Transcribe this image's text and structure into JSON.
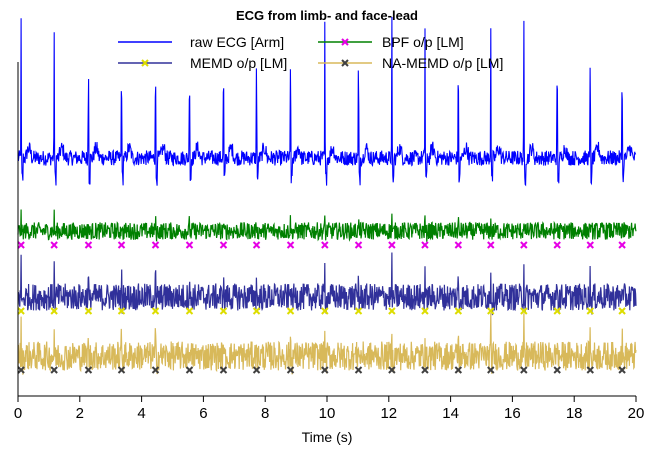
{
  "chart_data": {
    "type": "line",
    "title": "ECG from limb- and face-lead",
    "xlabel": "Time (s)",
    "ylabel": "",
    "xlim": [
      0,
      20
    ],
    "xticks": [
      0,
      2,
      4,
      6,
      8,
      10,
      12,
      14,
      16,
      18,
      20
    ],
    "xtick_labels": [
      "0",
      "2",
      "4",
      "6",
      "8",
      "10",
      "12",
      "14",
      "16",
      "18",
      "20"
    ],
    "yticks_visible": false,
    "grid": false,
    "legend_position": "top",
    "beat_times_s": [
      0.1,
      1.17,
      2.28,
      3.35,
      4.45,
      5.55,
      6.65,
      7.72,
      8.82,
      9.93,
      11.02,
      12.1,
      13.17,
      14.25,
      15.3,
      16.37,
      17.45,
      18.52,
      19.55
    ],
    "series": [
      {
        "name": "raw ECG [Arm]",
        "color": "#0000ff",
        "marker": "none",
        "baseline": 2.8,
        "r_peak": 2.1,
        "noise_amplitude": 0.12,
        "vertical_offset": 3
      },
      {
        "name": "BPF o/p [LM]",
        "color": "#008000",
        "marker": "x",
        "marker_color": "#e600e6",
        "baseline": 0,
        "r_peak": 0.3,
        "noise_amplitude": 0.18,
        "vertical_offset": 2
      },
      {
        "name": "MEMD o/p [LM]",
        "color": "#30309a",
        "marker": "x",
        "marker_color": "#dddd00",
        "baseline": 0,
        "r_peak": 0.65,
        "noise_amplitude": 0.28,
        "vertical_offset": 1
      },
      {
        "name": "NA-MEMD o/p [LM]",
        "color": "#d8b95a",
        "marker": "x",
        "marker_color": "#404040",
        "baseline": 0,
        "r_peak": 0.6,
        "noise_amplitude": 0.3,
        "vertical_offset": 0
      }
    ]
  }
}
